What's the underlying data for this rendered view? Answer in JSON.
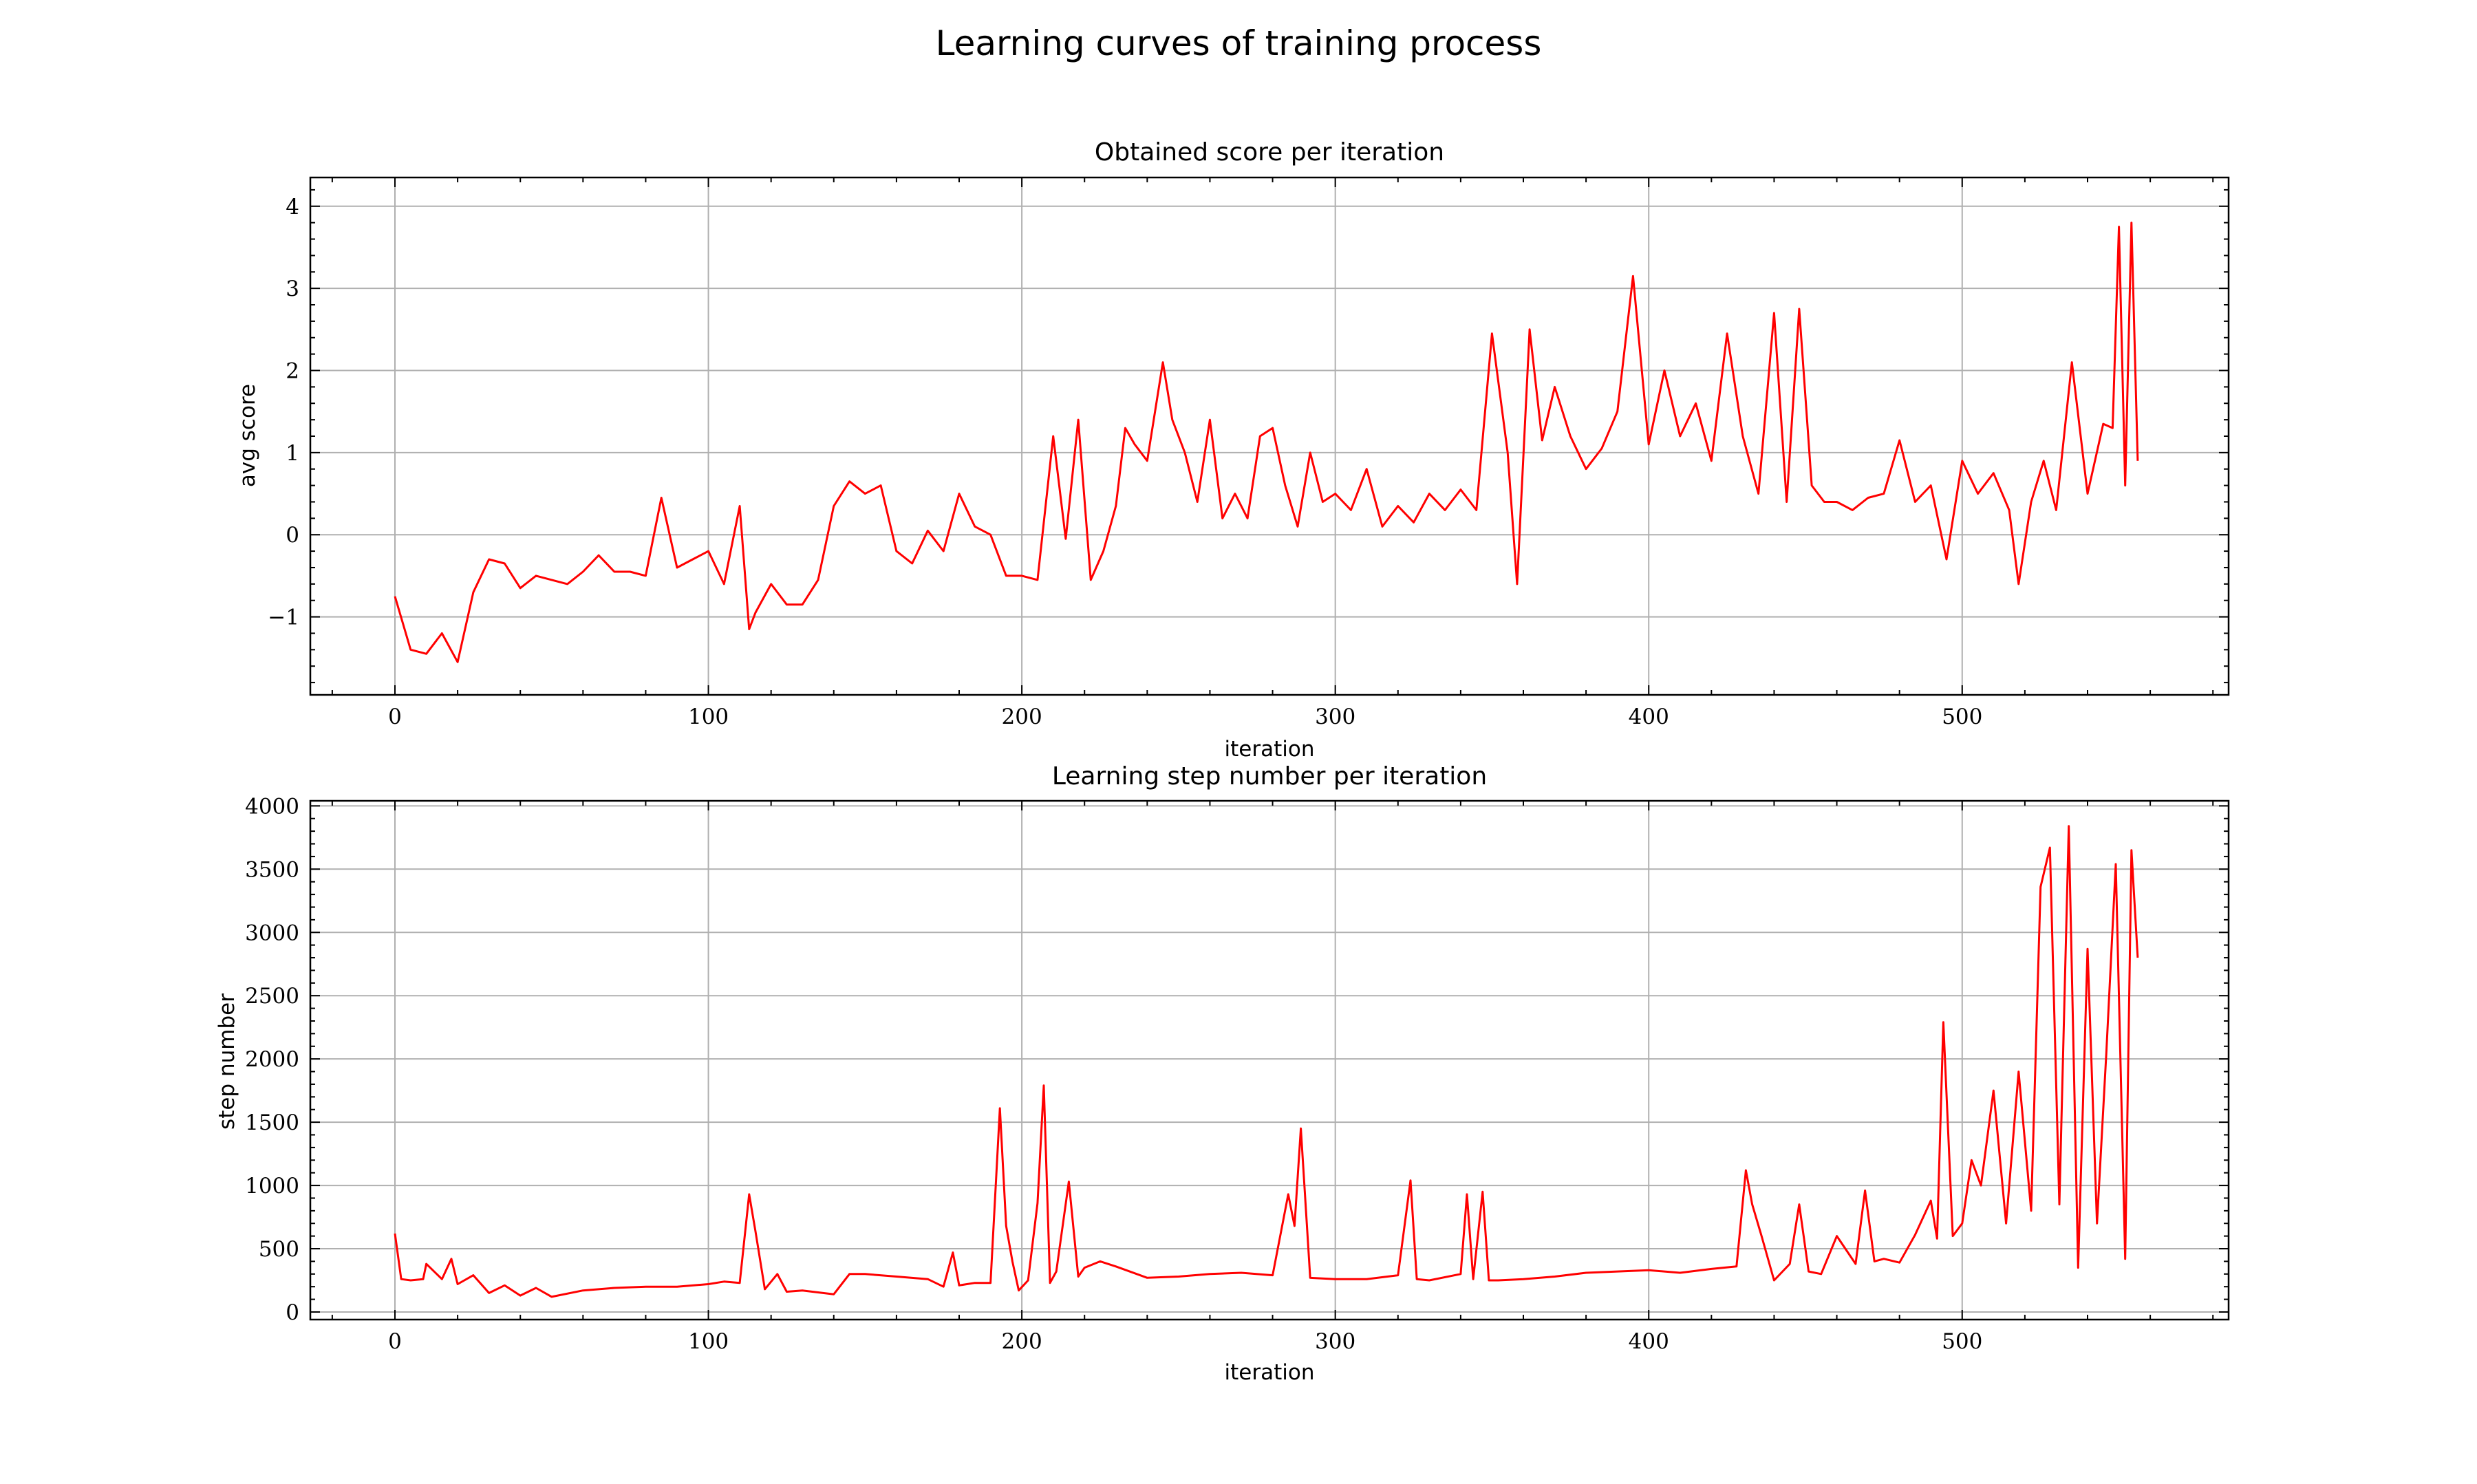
{
  "figure": {
    "suptitle": "Learning curves of training process",
    "line_color": "#ff0000",
    "grid": true
  },
  "chart_data": [
    {
      "type": "line",
      "title": "Obtained score per iteration",
      "xlabel": "iteration",
      "ylabel": "avg score",
      "xlim": [
        -27,
        585
      ],
      "ylim": [
        -1.95,
        4.35
      ],
      "xticks": [
        0,
        100,
        200,
        300,
        400,
        500
      ],
      "xtick_labels": [
        "0",
        "100",
        "200",
        "300",
        "400",
        "500"
      ],
      "yticks": [
        -1,
        0,
        1,
        2,
        3,
        4
      ],
      "ytick_labels": [
        "−1",
        "0",
        "1",
        "2",
        "3",
        "4"
      ],
      "grid": true,
      "series": [
        {
          "color": "#ff0000",
          "x": [
            0,
            5,
            10,
            15,
            20,
            25,
            30,
            35,
            40,
            45,
            50,
            55,
            60,
            65,
            70,
            75,
            80,
            85,
            90,
            95,
            100,
            105,
            110,
            113,
            115,
            120,
            125,
            130,
            135,
            140,
            145,
            150,
            155,
            160,
            165,
            170,
            175,
            180,
            185,
            190,
            195,
            200,
            205,
            210,
            214,
            218,
            222,
            226,
            230,
            233,
            236,
            240,
            245,
            248,
            252,
            256,
            260,
            264,
            268,
            272,
            276,
            280,
            284,
            288,
            292,
            296,
            300,
            305,
            310,
            315,
            320,
            325,
            330,
            335,
            340,
            345,
            350,
            355,
            358,
            362,
            366,
            370,
            375,
            380,
            385,
            390,
            395,
            400,
            405,
            410,
            415,
            420,
            425,
            430,
            435,
            440,
            444,
            448,
            452,
            456,
            460,
            465,
            470,
            475,
            480,
            485,
            490,
            495,
            500,
            505,
            510,
            515,
            518,
            522,
            526,
            530,
            535,
            540,
            545,
            548,
            550,
            552,
            554,
            556
          ],
          "values": [
            -0.75,
            -1.4,
            -1.45,
            -1.2,
            -1.55,
            -0.7,
            -0.3,
            -0.35,
            -0.65,
            -0.5,
            -0.55,
            -0.6,
            -0.45,
            -0.25,
            -0.45,
            -0.45,
            -0.5,
            0.45,
            -0.4,
            -0.3,
            -0.2,
            -0.6,
            0.35,
            -1.15,
            -0.95,
            -0.6,
            -0.85,
            -0.85,
            -0.55,
            0.35,
            0.65,
            0.5,
            0.6,
            -0.2,
            -0.35,
            0.05,
            -0.2,
            0.5,
            0.1,
            0.0,
            -0.5,
            -0.5,
            -0.55,
            1.2,
            -0.05,
            1.4,
            -0.55,
            -0.2,
            0.35,
            1.3,
            1.1,
            0.9,
            2.1,
            1.4,
            1.0,
            0.4,
            1.4,
            0.2,
            0.5,
            0.2,
            1.2,
            1.3,
            0.6,
            0.1,
            1.0,
            0.4,
            0.5,
            0.3,
            0.8,
            0.1,
            0.35,
            0.15,
            0.5,
            0.3,
            0.55,
            0.3,
            2.45,
            1.0,
            -0.6,
            2.5,
            1.15,
            1.8,
            1.2,
            0.8,
            1.05,
            1.5,
            3.15,
            1.1,
            2.0,
            1.2,
            1.6,
            0.9,
            2.45,
            1.2,
            0.5,
            2.7,
            0.4,
            2.75,
            0.6,
            0.4,
            0.4,
            0.3,
            0.45,
            0.5,
            1.15,
            0.4,
            0.6,
            -0.3,
            0.9,
            0.5,
            0.75,
            0.3,
            -0.6,
            0.4,
            0.9,
            0.3,
            2.1,
            0.5,
            1.35,
            1.3,
            3.75,
            0.6,
            3.8,
            0.9
          ]
        }
      ]
    },
    {
      "type": "line",
      "title": "Learning step number per iteration",
      "xlabel": "iteration",
      "ylabel": "step number",
      "xlim": [
        -27,
        585
      ],
      "ylim": [
        -60,
        4040
      ],
      "xticks": [
        0,
        100,
        200,
        300,
        400,
        500
      ],
      "xtick_labels": [
        "0",
        "100",
        "200",
        "300",
        "400",
        "500"
      ],
      "yticks": [
        0,
        500,
        1000,
        1500,
        2000,
        2500,
        3000,
        3500,
        4000
      ],
      "ytick_labels": [
        "0",
        "500",
        "1000",
        "1500",
        "2000",
        "2500",
        "3000",
        "3500",
        "4000"
      ],
      "grid": true,
      "series": [
        {
          "color": "#ff0000",
          "x": [
            0,
            2,
            5,
            9,
            10,
            15,
            18,
            20,
            25,
            30,
            35,
            40,
            45,
            50,
            60,
            70,
            80,
            90,
            100,
            105,
            110,
            113,
            115,
            118,
            122,
            125,
            130,
            140,
            145,
            150,
            160,
            170,
            175,
            178,
            180,
            185,
            190,
            193,
            195,
            197,
            199,
            202,
            205,
            207,
            209,
            211,
            215,
            218,
            220,
            225,
            230,
            240,
            250,
            260,
            270,
            280,
            285,
            287,
            289,
            292,
            300,
            310,
            320,
            324,
            326,
            330,
            340,
            342,
            344,
            347,
            349,
            352,
            360,
            370,
            380,
            390,
            400,
            410,
            420,
            428,
            431,
            433,
            436,
            440,
            445,
            448,
            451,
            455,
            460,
            466,
            469,
            472,
            475,
            480,
            485,
            490,
            492,
            494,
            497,
            500,
            503,
            506,
            510,
            514,
            518,
            522,
            525,
            528,
            531,
            534,
            537,
            540,
            543,
            546,
            549,
            552,
            554,
            556
          ],
          "values": [
            620,
            260,
            250,
            260,
            380,
            260,
            420,
            220,
            290,
            150,
            210,
            130,
            190,
            120,
            170,
            190,
            200,
            200,
            220,
            240,
            230,
            930,
            640,
            180,
            300,
            160,
            170,
            140,
            300,
            300,
            280,
            260,
            200,
            470,
            210,
            230,
            230,
            1610,
            680,
            400,
            170,
            250,
            860,
            1790,
            230,
            320,
            1030,
            280,
            350,
            400,
            360,
            270,
            280,
            300,
            310,
            290,
            930,
            680,
            1450,
            270,
            260,
            260,
            290,
            1040,
            260,
            250,
            300,
            930,
            260,
            950,
            250,
            250,
            260,
            280,
            310,
            320,
            330,
            310,
            340,
            360,
            1120,
            850,
            600,
            250,
            380,
            850,
            320,
            300,
            600,
            380,
            960,
            400,
            420,
            390,
            610,
            880,
            580,
            2290,
            600,
            700,
            1200,
            1000,
            1750,
            700,
            1900,
            800,
            3360,
            3670,
            850,
            3840,
            350,
            2870,
            700,
            2050,
            3540,
            420,
            3650,
            2800
          ]
        }
      ]
    }
  ]
}
